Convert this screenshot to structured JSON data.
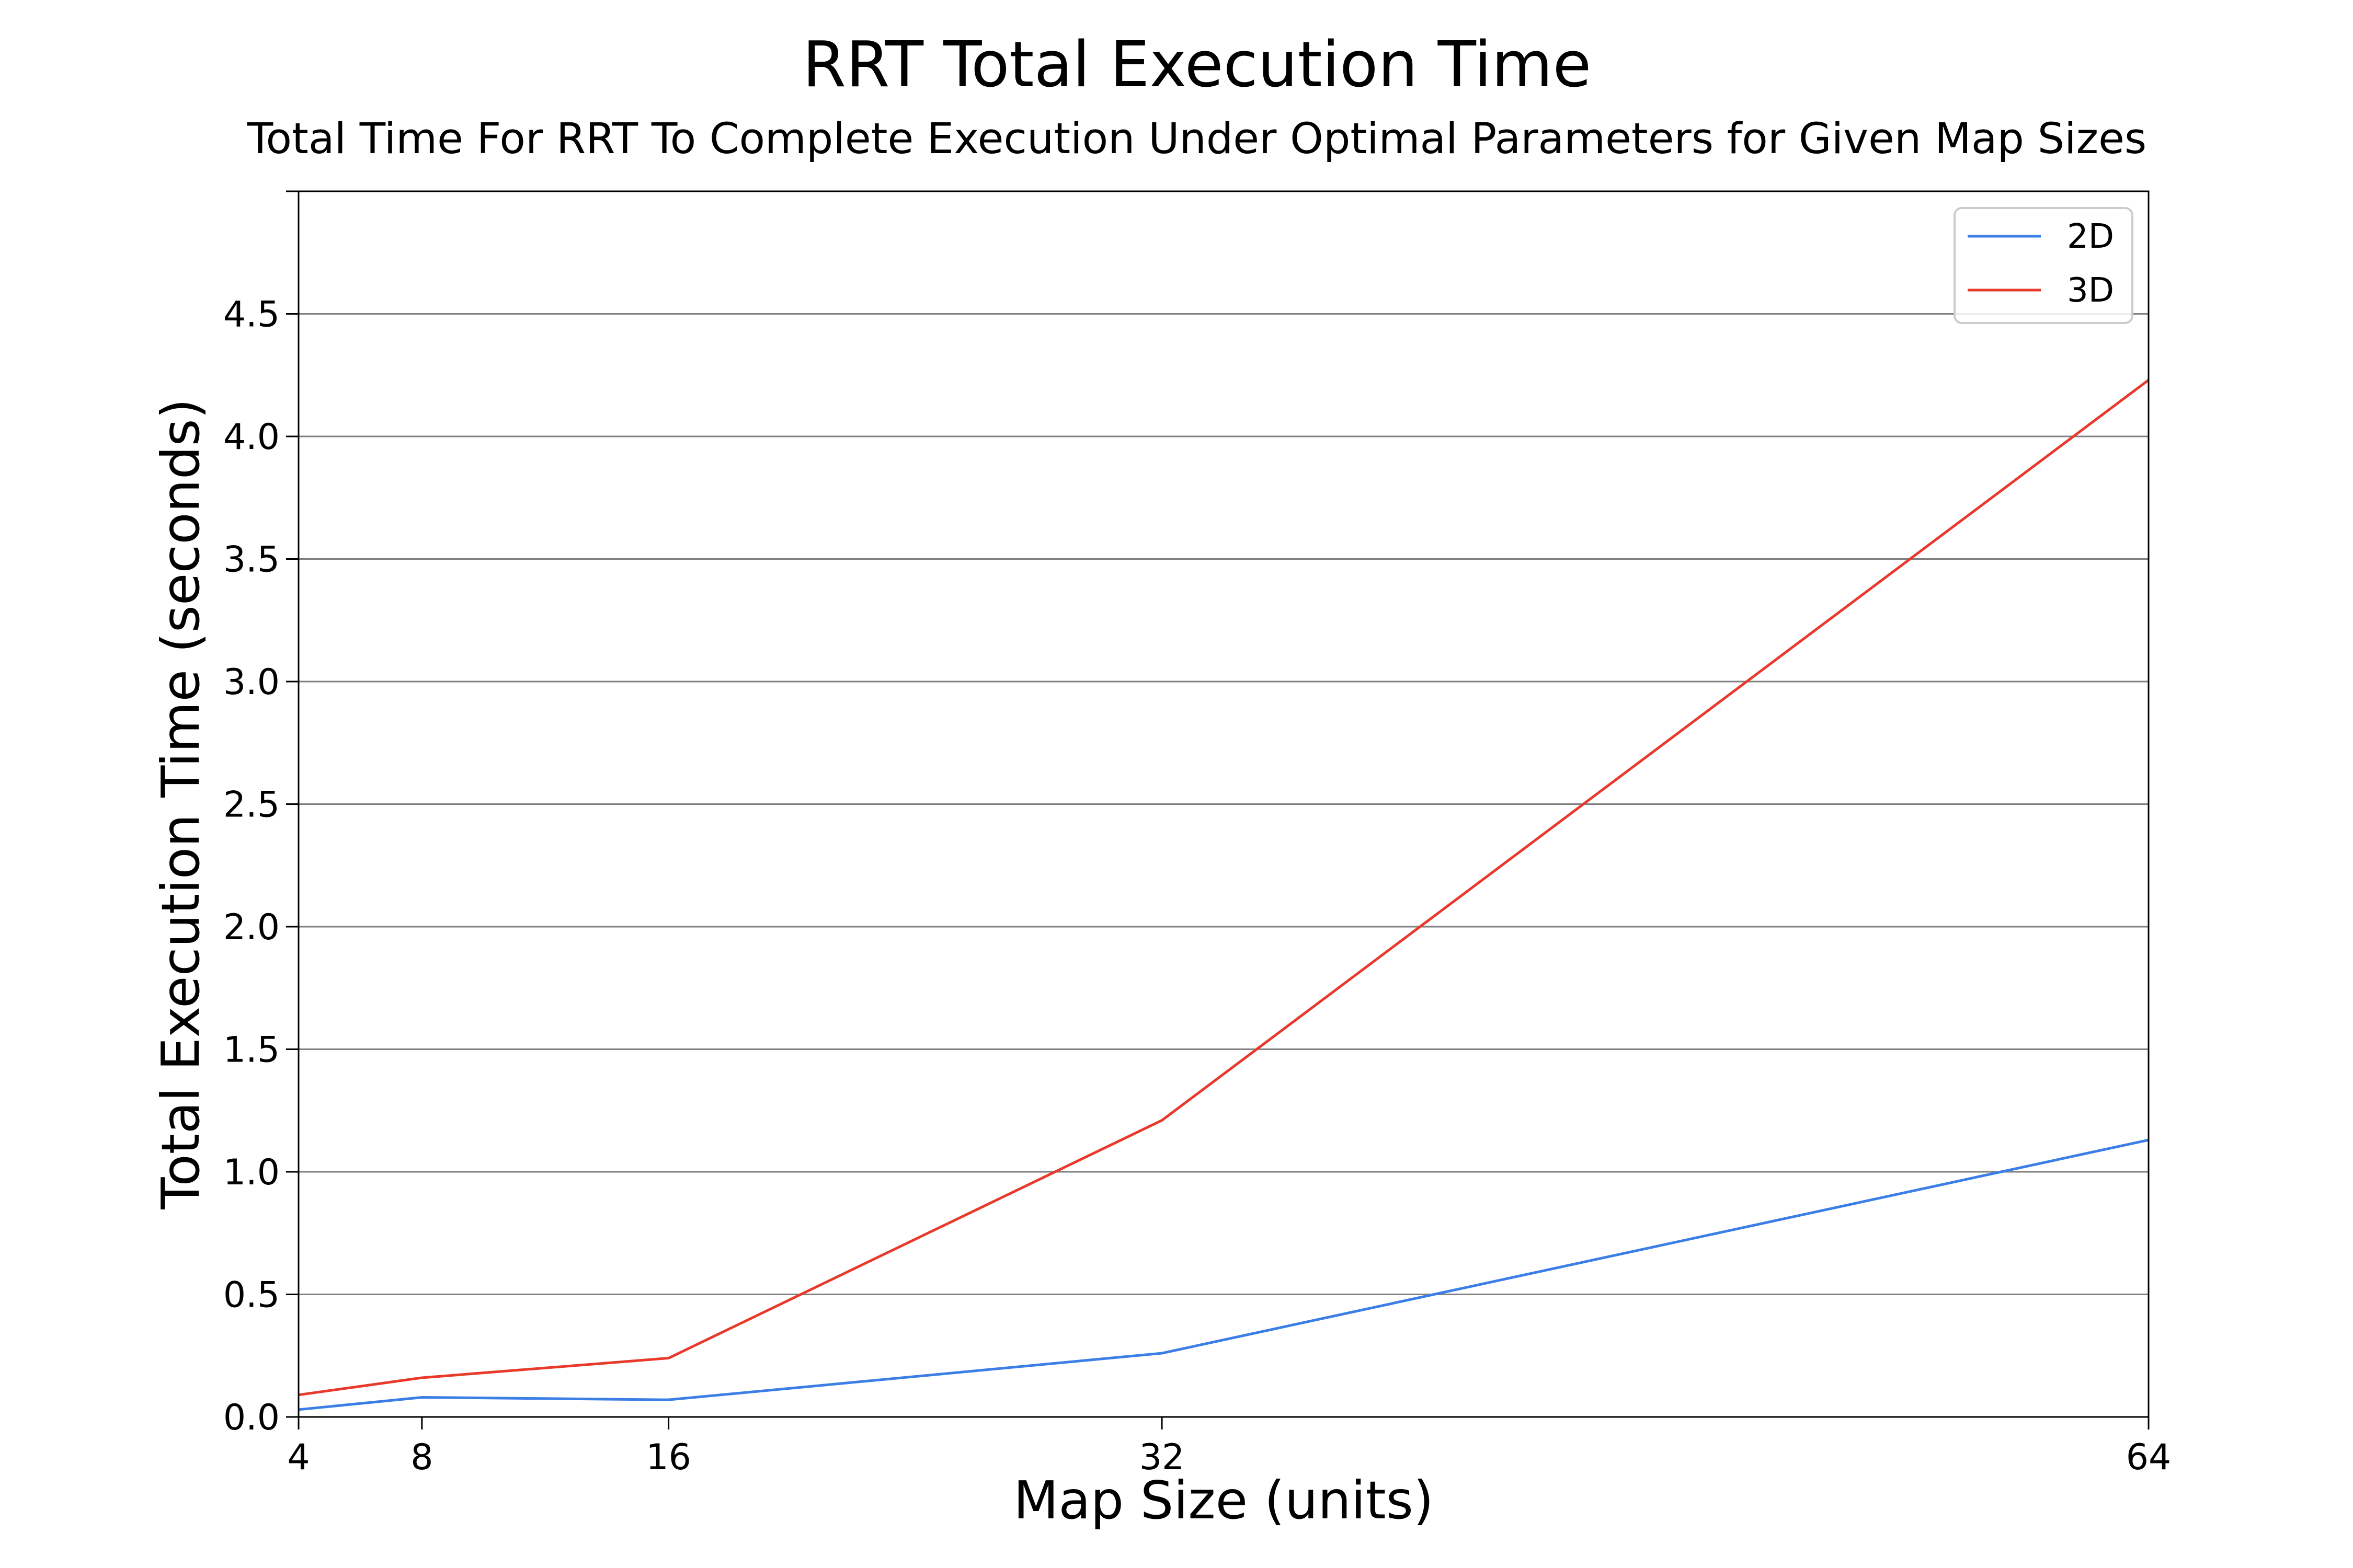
{
  "chart_data": {
    "type": "line",
    "title": "RRT Total Execution Time",
    "subtitle": "Total Time For RRT To Complete Execution Under Optimal Parameters for Given Map Sizes",
    "xlabel": "Map Size (units)",
    "ylabel": "Total Execution Time (seconds)",
    "x": [
      4,
      8,
      16,
      32,
      64
    ],
    "xticks": [
      "4",
      "8",
      "16",
      "32",
      "64"
    ],
    "xlim": [
      4,
      64
    ],
    "ylim": [
      0,
      5.0
    ],
    "yticks": [
      "0.0",
      "0.5",
      "1.0",
      "1.5",
      "2.0",
      "2.5",
      "3.0",
      "3.5",
      "4.0",
      "4.5"
    ],
    "grid": "horizontal",
    "legend_position": "top-right",
    "series": [
      {
        "name": "2D",
        "color": "#3b7fe6",
        "values": [
          0.03,
          0.08,
          0.07,
          0.26,
          1.13
        ]
      },
      {
        "name": "3D",
        "color": "#e8392b",
        "values": [
          0.09,
          0.16,
          0.24,
          1.21,
          4.23
        ]
      }
    ]
  }
}
